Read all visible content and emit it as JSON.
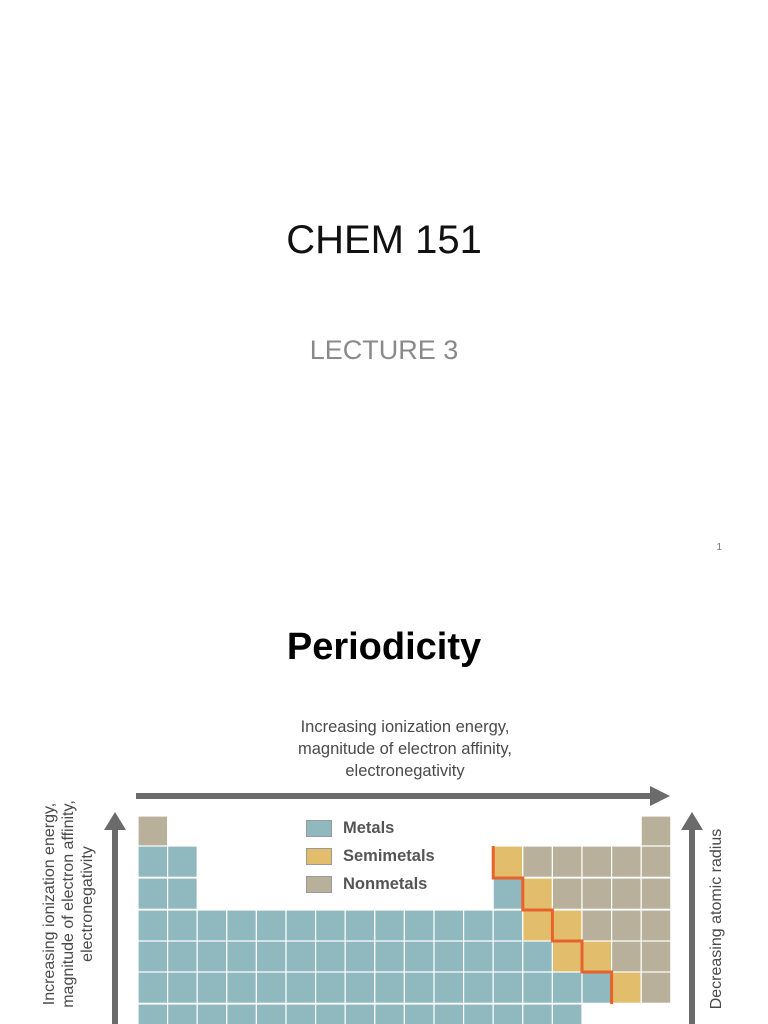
{
  "slide1": {
    "title": "CHEM 151",
    "subtitle": "LECTURE 3",
    "page_number": "1"
  },
  "slide2": {
    "title": "Periodicity",
    "figure": {
      "top_caption": [
        "Increasing ionization energy,",
        "magnitude of electron affinity,",
        "electronegativity"
      ],
      "left_caption": [
        "Increasing ionization energy,",
        "magnitude of electron affinity,",
        "electronegativity"
      ],
      "right_caption": "Decreasing atomic radius",
      "legend": [
        {
          "label": "Metals",
          "color": "#8fb8bf"
        },
        {
          "label": "Semimetals",
          "color": "#e2bd6b"
        },
        {
          "label": "Nonmetals",
          "color": "#b8b09a"
        }
      ],
      "colors": {
        "metal": "#8fb8bf",
        "semimetal": "#e2bd6b",
        "nonmetal": "#b8b09a",
        "grid_line": "#ffffff",
        "border_line": "#e8622c",
        "arrow": "#6b6b6b"
      }
    }
  }
}
